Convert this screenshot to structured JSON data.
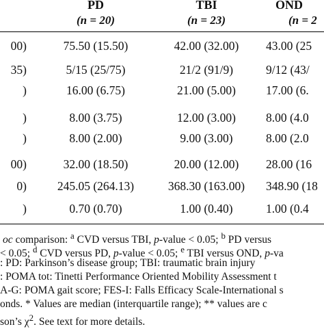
{
  "columns": [
    {
      "name": "PD",
      "n": "(n = 20)"
    },
    {
      "name": "TBI",
      "n": "(n = 23)"
    },
    {
      "name": "OND",
      "n": "(n = 2"
    }
  ],
  "rows": [
    {
      "c0": "00)",
      "c1": "75.50 (15.50)",
      "c2": "42.00 (32.00)",
      "c3": "43.00 (25"
    },
    {
      "c0": "35)",
      "c1": "5/15 (25/75)",
      "c2": "21/2 (91/9)",
      "c3": "9/12 (43/"
    },
    {
      "c0": ")",
      "c1": "16.00 (6.75)",
      "c2": "21.00 (5.00)",
      "c3": "17.00 (6."
    },
    {
      "c0": ")",
      "c1": "8.00 (3.75)",
      "c2": "12.00 (3.00)",
      "c3": "8.00 (4.0"
    },
    {
      "c0": ")",
      "c1": "8.00 (2.00)",
      "c2": "9.00 (3.00)",
      "c3": "8.00 (2.0"
    },
    {
      "c0": "00)",
      "c1": "32.00 (18.50)",
      "c2": "20.00 (12.00)",
      "c3": "28.00 (16"
    },
    {
      "c0": "0)",
      "c1": "245.05 (264.13)",
      "c2": "368.30 (163.00)",
      "c3": "348.90 (18"
    },
    {
      "c0": ")",
      "c1": "0.70 (0.70)",
      "c2": "1.00 (0.40)",
      "c3": "1.00 (0.4"
    }
  ],
  "footnotes": {
    "l1_a": "oc",
    "l1_b": " comparison: ",
    "l1_c": "a",
    "l1_d": " CVD versus TBI, ",
    "l1_e": "p",
    "l1_f": "-value < 0.05; ",
    "l1_g": "b",
    "l1_h": " PD versus",
    "l2_a": " < 0.05; ",
    "l2_b": "d",
    "l2_c": " CVD versus PD, ",
    "l2_d": "p",
    "l2_e": "-value < 0.05; ",
    "l2_f": "e",
    "l2_g": " TBI versus OND, ",
    "l2_h": "p",
    "l2_i": "-va",
    "l3": ": PD: Parkinson’s disease group; TBI: traumatic brain injury",
    "l4": ": POMA tot: Tinetti Performance Oriented Mobility Assessment t",
    "l5": "A-G: POMA gait score; FES-I: Falls Efficacy Scale-International s",
    "l6": "onds. * Values are median (interquartile range); ** values are c",
    "l7_a": "son’s χ",
    "l7_b": "2",
    "l7_c": ". See text for more details."
  }
}
